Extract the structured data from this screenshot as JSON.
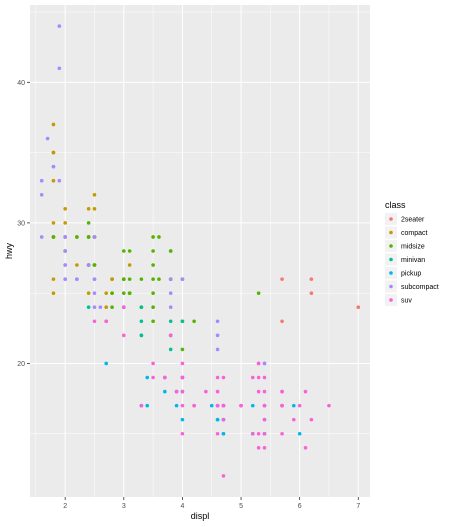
{
  "chart_data": {
    "type": "scatter",
    "xlabel": "displ",
    "ylabel": "hwy",
    "xlim": [
      1.4,
      7.2
    ],
    "ylim": [
      10.5,
      45.5
    ],
    "x_ticks": [
      2,
      3,
      4,
      5,
      6,
      7
    ],
    "y_ticks": [
      20,
      30,
      40
    ],
    "grid": true,
    "legend": {
      "title": "class",
      "placement": "right"
    },
    "colors": {
      "panel_background": "#ebebeb",
      "grid": "#ffffff"
    },
    "series": [
      {
        "name": "2seater",
        "color": "#F8766D",
        "points": [
          [
            5.7,
            26
          ],
          [
            5.7,
            23
          ],
          [
            6.2,
            26
          ],
          [
            6.2,
            25
          ],
          [
            7.0,
            24
          ]
        ]
      },
      {
        "name": "compact",
        "color": "#C49A00",
        "points": [
          [
            1.8,
            29
          ],
          [
            1.8,
            29
          ],
          [
            2.0,
            31
          ],
          [
            2.0,
            30
          ],
          [
            2.8,
            26
          ],
          [
            2.8,
            26
          ],
          [
            3.1,
            27
          ],
          [
            1.8,
            26
          ],
          [
            1.8,
            25
          ],
          [
            2.0,
            28
          ],
          [
            2.0,
            29
          ],
          [
            2.8,
            25
          ],
          [
            3.1,
            25
          ],
          [
            2.2,
            27
          ],
          [
            2.4,
            29
          ],
          [
            2.5,
            31
          ],
          [
            2.5,
            29
          ],
          [
            2.4,
            31
          ],
          [
            2.2,
            29
          ],
          [
            1.8,
            30
          ],
          [
            1.8,
            33
          ],
          [
            1.8,
            35
          ],
          [
            1.8,
            37
          ],
          [
            1.8,
            35
          ],
          [
            2.5,
            29
          ],
          [
            2.5,
            27
          ],
          [
            2.5,
            32
          ],
          [
            2.5,
            29
          ],
          [
            3.0,
            26
          ],
          [
            2.8,
            26
          ],
          [
            2.4,
            27
          ],
          [
            2.7,
            24
          ],
          [
            2.7,
            25
          ],
          [
            2.4,
            25
          ],
          [
            2.7,
            23
          ]
        ]
      },
      {
        "name": "midsize",
        "color": "#53B400",
        "points": [
          [
            2.8,
            24
          ],
          [
            3.1,
            25
          ],
          [
            4.2,
            23
          ],
          [
            2.4,
            27
          ],
          [
            2.4,
            30
          ],
          [
            3.1,
            26
          ],
          [
            3.5,
            29
          ],
          [
            3.6,
            26
          ],
          [
            2.4,
            29
          ],
          [
            2.5,
            27
          ],
          [
            3.3,
            26
          ],
          [
            3.5,
            28
          ],
          [
            3.5,
            27
          ],
          [
            3.8,
            28
          ],
          [
            3.8,
            26
          ],
          [
            3.8,
            26
          ],
          [
            3.5,
            23
          ],
          [
            3.0,
            26
          ],
          [
            3.0,
            25
          ],
          [
            3.5,
            26
          ],
          [
            3.3,
            24
          ],
          [
            4.0,
            26
          ],
          [
            2.4,
            27
          ],
          [
            2.4,
            29
          ],
          [
            3.0,
            28
          ],
          [
            3.5,
            25
          ],
          [
            3.8,
            28
          ],
          [
            1.8,
            29
          ],
          [
            2.0,
            28
          ],
          [
            2.8,
            25
          ],
          [
            3.0,
            26
          ],
          [
            3.5,
            24
          ],
          [
            4.0,
            23
          ],
          [
            2.2,
            29
          ],
          [
            2.5,
            27
          ],
          [
            5.3,
            25
          ],
          [
            3.1,
            25
          ],
          [
            3.1,
            28
          ],
          [
            3.6,
            29
          ],
          [
            4.0,
            21
          ]
        ]
      },
      {
        "name": "minivan",
        "color": "#00C094",
        "points": [
          [
            2.4,
            24
          ],
          [
            3.0,
            24
          ],
          [
            3.3,
            22
          ],
          [
            3.3,
            22
          ],
          [
            3.8,
            21
          ],
          [
            3.8,
            22
          ],
          [
            3.8,
            22
          ],
          [
            3.8,
            23
          ],
          [
            3.3,
            23
          ],
          [
            3.3,
            24
          ],
          [
            4.0,
            23
          ]
        ]
      },
      {
        "name": "pickup",
        "color": "#00B6EB",
        "points": [
          [
            2.7,
            20
          ],
          [
            3.4,
            19
          ],
          [
            3.4,
            17
          ],
          [
            3.9,
            17
          ],
          [
            4.7,
            17
          ],
          [
            4.7,
            16
          ],
          [
            4.7,
            15
          ],
          [
            5.2,
            17
          ],
          [
            5.7,
            17
          ],
          [
            5.9,
            17
          ],
          [
            4.7,
            17
          ],
          [
            4.6,
            16
          ],
          [
            4.6,
            17
          ],
          [
            5.4,
            16
          ],
          [
            5.4,
            15
          ],
          [
            3.7,
            18
          ],
          [
            4.7,
            15
          ],
          [
            4.7,
            16
          ],
          [
            5.2,
            15
          ],
          [
            5.2,
            15
          ],
          [
            3.7,
            19
          ],
          [
            4.0,
            18
          ],
          [
            4.6,
            16
          ],
          [
            5.4,
            17
          ],
          [
            4.0,
            19
          ],
          [
            4.0,
            19
          ],
          [
            5.4,
            15
          ],
          [
            3.9,
            18
          ],
          [
            3.3,
            17
          ],
          [
            4.5,
            17
          ],
          [
            4.0,
            16
          ],
          [
            5.2,
            15
          ],
          [
            6.0,
            15
          ]
        ]
      },
      {
        "name": "subcompact",
        "color": "#A58AFF",
        "points": [
          [
            1.6,
            33
          ],
          [
            1.6,
            32
          ],
          [
            1.6,
            29
          ],
          [
            1.7,
            36
          ],
          [
            1.8,
            34
          ],
          [
            1.9,
            44
          ],
          [
            1.9,
            41
          ],
          [
            2.0,
            29
          ],
          [
            2.0,
            26
          ],
          [
            2.0,
            27
          ],
          [
            2.2,
            26
          ],
          [
            2.5,
            24
          ],
          [
            2.5,
            26
          ],
          [
            2.6,
            24
          ],
          [
            2.0,
            28
          ],
          [
            3.8,
            26
          ],
          [
            3.8,
            25
          ],
          [
            3.8,
            24
          ],
          [
            4.0,
            26
          ],
          [
            4.6,
            23
          ],
          [
            4.6,
            22
          ],
          [
            5.4,
            20
          ],
          [
            4.6,
            21
          ],
          [
            5.4,
            20
          ],
          [
            1.8,
            34
          ],
          [
            2.5,
            26
          ],
          [
            2.5,
            25
          ],
          [
            2.0,
            29
          ],
          [
            2.0,
            27
          ],
          [
            3.3,
            17
          ],
          [
            2.2,
            26
          ],
          [
            2.5,
            29
          ],
          [
            2.0,
            26
          ],
          [
            2.4,
            27
          ],
          [
            1.9,
            33
          ]
        ]
      },
      {
        "name": "suv",
        "color": "#FB61D7",
        "points": [
          [
            5.3,
            20
          ],
          [
            5.3,
            15
          ],
          [
            5.3,
            20
          ],
          [
            5.7,
            17
          ],
          [
            6.0,
            17
          ],
          [
            5.3,
            19
          ],
          [
            5.7,
            17
          ],
          [
            6.5,
            17
          ],
          [
            4.7,
            12
          ],
          [
            4.7,
            17
          ],
          [
            5.7,
            17
          ],
          [
            5.7,
            18
          ],
          [
            6.1,
            14
          ],
          [
            5.3,
            18
          ],
          [
            4.0,
            19
          ],
          [
            4.0,
            17
          ],
          [
            4.6,
            19
          ],
          [
            5.0,
            17
          ],
          [
            4.2,
            17
          ],
          [
            4.2,
            17
          ],
          [
            4.6,
            17
          ],
          [
            5.4,
            17
          ],
          [
            5.4,
            18
          ],
          [
            4.0,
            20
          ],
          [
            4.0,
            18
          ],
          [
            4.6,
            18
          ],
          [
            5.0,
            17
          ],
          [
            4.0,
            15
          ],
          [
            4.6,
            17
          ],
          [
            5.4,
            19
          ],
          [
            4.7,
            19
          ],
          [
            4.7,
            16
          ],
          [
            5.9,
            16
          ],
          [
            4.7,
            17
          ],
          [
            5.7,
            18
          ],
          [
            6.1,
            18
          ],
          [
            2.5,
            23
          ],
          [
            3.7,
            19
          ],
          [
            4.0,
            19
          ],
          [
            3.0,
            22
          ],
          [
            3.3,
            17
          ],
          [
            3.0,
            24
          ],
          [
            3.9,
            18
          ],
          [
            5.4,
            14
          ],
          [
            5.4,
            15
          ],
          [
            5.3,
            14
          ],
          [
            4.4,
            18
          ],
          [
            5.0,
            17
          ],
          [
            5.7,
            15
          ],
          [
            6.2,
            16
          ],
          [
            5.4,
            17
          ],
          [
            4.6,
            15
          ],
          [
            3.7,
            19
          ],
          [
            5.2,
            19
          ],
          [
            5.4,
            16
          ],
          [
            2.7,
            23
          ],
          [
            3.8,
            22
          ],
          [
            4.0,
            19
          ],
          [
            3.5,
            19
          ],
          [
            4.7,
            17
          ],
          [
            5.2,
            15
          ],
          [
            3.5,
            20
          ]
        ]
      }
    ]
  }
}
